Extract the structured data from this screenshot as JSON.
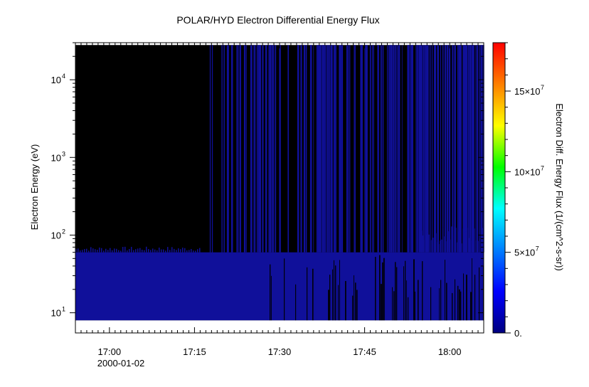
{
  "chart_data": {
    "type": "heatmap",
    "title": "POLAR/HYD  Electron Differential Energy Flux",
    "ylabel": "Electron Energy (eV)",
    "xlabel": "",
    "x_date_label": "2000-01-02",
    "x_ticks": [
      "17:00",
      "17:15",
      "17:30",
      "17:45",
      "18:00"
    ],
    "x_range": [
      "16:54",
      "18:06"
    ],
    "y_scale": "log",
    "y_range": [
      5.5,
      30000
    ],
    "y_ticks": [
      {
        "value": 10,
        "base": "10",
        "exp": "1"
      },
      {
        "value": 100,
        "base": "10",
        "exp": "2"
      },
      {
        "value": 1000,
        "base": "10",
        "exp": "3"
      },
      {
        "value": 10000,
        "base": "10",
        "exp": "4"
      }
    ],
    "data_energy_range_eV": [
      8,
      28000
    ],
    "fill_start": "17:16",
    "fill_energy_max_eV_typical": 60,
    "fill_energy_max_eV_late": 130,
    "colorbar": {
      "label": "Electron Diff. Energy Flux (1/(cm^2-s-sr))",
      "range": [
        0,
        180000000
      ],
      "ticks": [
        {
          "value": 0,
          "text": "0.",
          "base": "",
          "exp": ""
        },
        {
          "value": 50000000,
          "text": "",
          "base": "5×10",
          "exp": "7"
        },
        {
          "value": 100000000,
          "text": "",
          "base": "10×10",
          "exp": "7"
        },
        {
          "value": 150000000,
          "text": "",
          "base": "15×10",
          "exp": "7"
        }
      ],
      "colors": [
        "#00007f",
        "#0000ff",
        "#007fff",
        "#00ffff",
        "#00ff00",
        "#ffff00",
        "#ff7f00",
        "#ff0000"
      ]
    },
    "colors": {
      "no_data": "#000000",
      "low_flux": "#10109a"
    }
  }
}
